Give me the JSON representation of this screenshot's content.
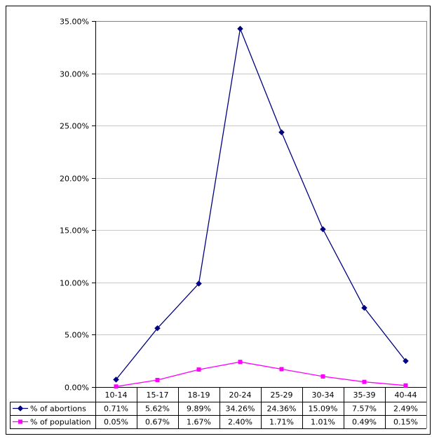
{
  "chart_data": {
    "type": "line",
    "title": "",
    "xlabel": "",
    "ylabel": "",
    "categories": [
      "10-14",
      "15-17",
      "18-19",
      "20-24",
      "25-29",
      "30-34",
      "35-39",
      "40-44"
    ],
    "series": [
      {
        "name": "% of abortions",
        "values": [
          0.71,
          5.62,
          9.89,
          34.26,
          24.36,
          15.09,
          7.57,
          2.49
        ],
        "labels": [
          "0.71%",
          "5.62%",
          "9.89%",
          "34.26%",
          "24.36%",
          "15.09%",
          "7.57%",
          "2.49%"
        ],
        "color": "#000080",
        "marker": "diamond"
      },
      {
        "name": "% of population",
        "values": [
          0.05,
          0.67,
          1.67,
          2.4,
          1.71,
          1.01,
          0.49,
          0.15
        ],
        "labels": [
          "0.05%",
          "0.67%",
          "1.67%",
          "2.40%",
          "1.71%",
          "1.01%",
          "0.49%",
          "0.15%"
        ],
        "color": "#FF00FF",
        "marker": "square"
      }
    ],
    "ylim": [
      0,
      35
    ],
    "yticks": [
      0,
      5,
      10,
      15,
      20,
      25,
      30,
      35
    ],
    "ytick_labels": [
      "0.00%",
      "5.00%",
      "10.00%",
      "15.00%",
      "20.00%",
      "25.00%",
      "30.00%",
      "35.00%"
    ],
    "grid": true,
    "legend": "bottom",
    "data_table": true
  }
}
